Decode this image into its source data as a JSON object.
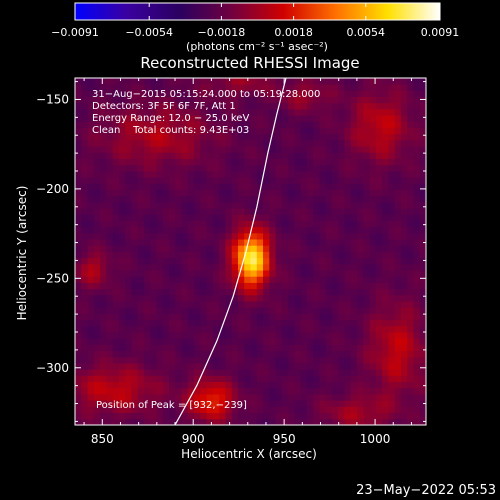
{
  "chart_data": {
    "type": "heatmap",
    "title": "Reconstructed RHESSI Image",
    "xlabel": "Heliocentric X (arcsec)",
    "ylabel": "Heliocentric Y (arcsec)",
    "xlim": [
      835,
      1028
    ],
    "ylim": [
      -332,
      -138
    ],
    "x_ticks": [
      850,
      900,
      950,
      1000
    ],
    "x_tick_labels": [
      "850",
      "900",
      "950",
      "1000"
    ],
    "y_ticks": [
      -150,
      -200,
      -250,
      -300
    ],
    "y_tick_labels": [
      "−150",
      "−200",
      "−250",
      "−300"
    ],
    "colorbar": {
      "colormap": "blue-purple-red-yellow-white",
      "colors": [
        "#0000ff",
        "#3a00a0",
        "#2a0060",
        "#700040",
        "#d00000",
        "#ff7000",
        "#ffe000",
        "#ffffff"
      ],
      "range": [
        -0.0091,
        0.0091
      ],
      "ticks": [
        -0.0091,
        -0.0054,
        -0.0018,
        0.0018,
        0.0054,
        0.0091
      ],
      "tick_labels": [
        "−0.0091",
        "−0.0054",
        "−0.0018",
        "0.0018",
        "0.0054",
        "0.0091"
      ],
      "unit_label": "(photons cm⁻² s⁻¹ asec⁻²)"
    },
    "annotations": [
      "31−Aug−2015 05:15:24.000 to 05:19:28.000",
      "Detectors: 3F 5F 6F 7F, Att 1",
      "Energy Range: 12.0 − 25.0 keV",
      "Clean    Total counts: 9.43E+03"
    ],
    "peak_label": "Position of Peak = [932,−239]",
    "peak": {
      "x": 932,
      "y": -239
    },
    "limb_curve": [
      [
        890,
        -332
      ],
      [
        902,
        -310
      ],
      [
        913,
        -285
      ],
      [
        922,
        -260
      ],
      [
        929,
        -235
      ],
      [
        935,
        -210
      ],
      [
        941,
        -180
      ],
      [
        946,
        -158
      ],
      [
        951,
        -138
      ]
    ],
    "sources": [
      {
        "x": 932,
        "y": -239,
        "sx": 7,
        "sy": 11,
        "amp": 0.0095
      },
      {
        "x": 910,
        "y": -318,
        "sx": 9,
        "sy": 8,
        "amp": 0.0045
      },
      {
        "x": 856,
        "y": -312,
        "sx": 18,
        "sy": 10,
        "amp": 0.003
      },
      {
        "x": 1003,
        "y": -165,
        "sx": 12,
        "sy": 14,
        "amp": 0.003
      },
      {
        "x": 1012,
        "y": -290,
        "sx": 11,
        "sy": 18,
        "amp": 0.003
      },
      {
        "x": 880,
        "y": -170,
        "sx": 22,
        "sy": 12,
        "amp": 0.0025
      },
      {
        "x": 845,
        "y": -245,
        "sx": 7,
        "sy": 7,
        "amp": 0.0025
      },
      {
        "x": 990,
        "y": -325,
        "sx": 14,
        "sy": 7,
        "amp": 0.0022
      },
      {
        "x": 962,
        "y": -148,
        "sx": 10,
        "sy": 6,
        "amp": 0.002
      },
      {
        "x": 925,
        "y": -140,
        "sx": 14,
        "sy": 6,
        "amp": 0.0018
      }
    ]
  },
  "footer": {
    "timestamp": "23−May−2022 05:53"
  }
}
